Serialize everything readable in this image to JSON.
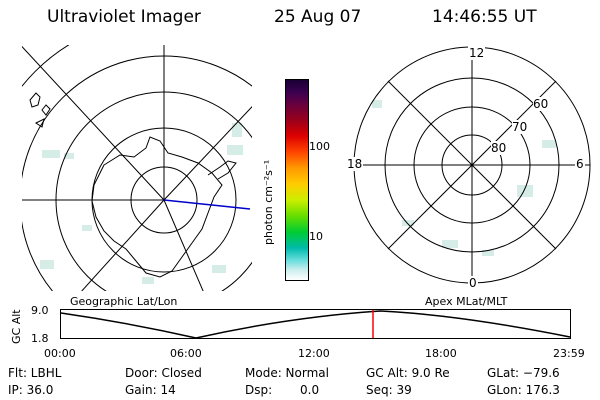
{
  "header": {
    "title": "Ultraviolet Imager",
    "date": "25 Aug 07",
    "time": "14:46:55 UT"
  },
  "left_map": {
    "label": "Geographic Lat/Lon"
  },
  "right_map": {
    "label": "Apex MLat/MLT",
    "mlt_labels": {
      "top": "12",
      "left": "18",
      "right": "6",
      "bottom": "0"
    },
    "lat_labels": [
      "60",
      "70",
      "80"
    ]
  },
  "colorbar": {
    "unit_label": "photon cm⁻²s⁻¹",
    "tick_labels": [
      "100",
      "10"
    ]
  },
  "altitude_plot": {
    "y_label": "GC Alt",
    "y_ticks": [
      "9.0",
      "1.8"
    ],
    "x_ticks": [
      "00:00",
      "06:00",
      "12:00",
      "18:00",
      "23:59"
    ]
  },
  "status": {
    "filter": "Flt: LBHL",
    "door": "Door: Closed",
    "mode": "Mode: Normal",
    "gc_alt": "GC Alt: 9.0 Re",
    "glat": "GLat: −79.6",
    "ip": "IP: 36.0",
    "gain": "Gain: 14",
    "dsp_label": "Dsp:",
    "dsp_value": "0.0",
    "seq": "Seq: 39",
    "glon": "GLon: 176.3"
  },
  "colors": {
    "blue_track": "#0000cc",
    "red_marker": "#ff0000",
    "speckle": "#cfe8e0"
  }
}
